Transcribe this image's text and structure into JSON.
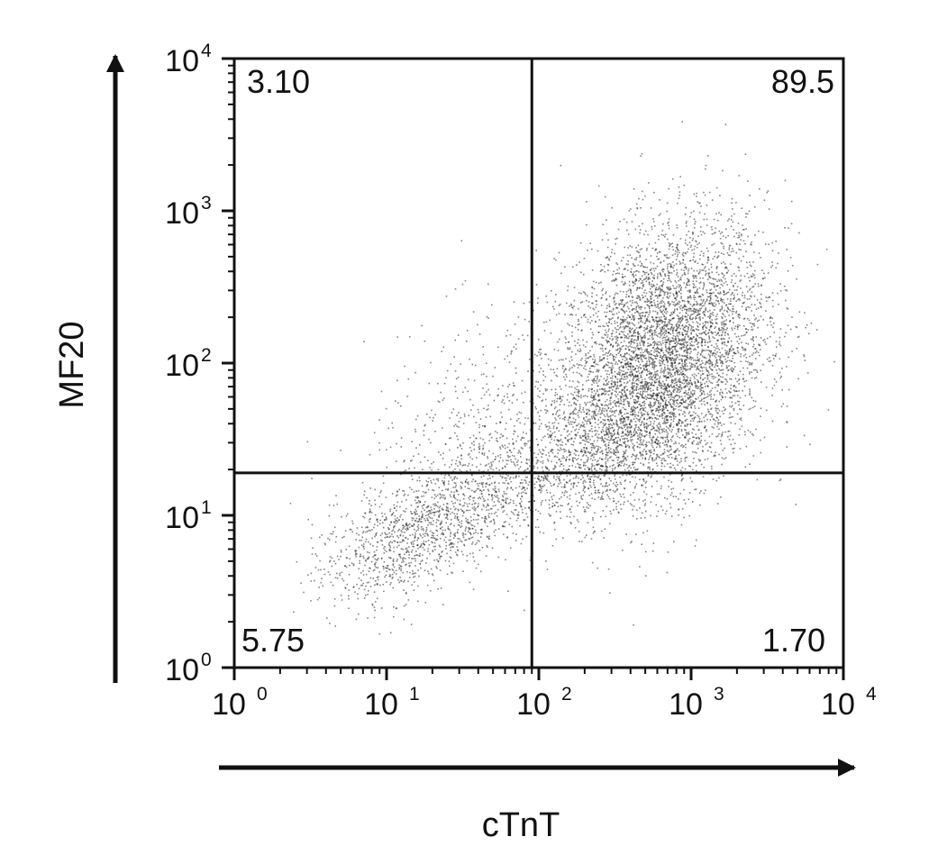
{
  "chart_data": {
    "type": "scatter",
    "title": "",
    "xlabel": "cTnT",
    "ylabel": "MF20",
    "x_scale": "log",
    "y_scale": "log",
    "xlim": [
      1,
      10000
    ],
    "ylim": [
      1,
      10000
    ],
    "x_ticks": [
      {
        "value": 1,
        "base": "10",
        "exp": "0"
      },
      {
        "value": 10,
        "base": "10",
        "exp": "1"
      },
      {
        "value": 100,
        "base": "10",
        "exp": "2"
      },
      {
        "value": 1000,
        "base": "10",
        "exp": "3"
      },
      {
        "value": 10000,
        "base": "10",
        "exp": "4"
      }
    ],
    "y_ticks": [
      {
        "value": 1,
        "base": "10",
        "exp": "0"
      },
      {
        "value": 10,
        "base": "10",
        "exp": "1"
      },
      {
        "value": 100,
        "base": "10",
        "exp": "2"
      },
      {
        "value": 1000,
        "base": "10",
        "exp": "3"
      },
      {
        "value": 10000,
        "base": "10",
        "exp": "4"
      }
    ],
    "gates": {
      "x": 90,
      "y": 19
    },
    "quadrants": {
      "upper_left": "3.10",
      "upper_right": "89.5",
      "lower_left": "5.75",
      "lower_right": "1.70"
    },
    "population_clusters": [
      {
        "x_center": 650,
        "y_center": 110,
        "x_spread_decades": 0.34,
        "y_spread_decades": 0.42,
        "points": 5200
      },
      {
        "x_center": 250,
        "y_center": 30,
        "x_spread_decades": 0.35,
        "y_spread_decades": 0.22,
        "points": 1200
      },
      {
        "x_center": 28,
        "y_center": 11,
        "x_spread_decades": 0.32,
        "y_spread_decades": 0.2,
        "points": 900
      },
      {
        "x_center": 10,
        "y_center": 6,
        "x_spread_decades": 0.25,
        "y_spread_decades": 0.18,
        "points": 500
      },
      {
        "x_center": 45,
        "y_center": 35,
        "x_spread_decades": 0.4,
        "y_spread_decades": 0.4,
        "points": 500
      }
    ],
    "grid": false,
    "legend": "none",
    "point_color": "#222222"
  }
}
